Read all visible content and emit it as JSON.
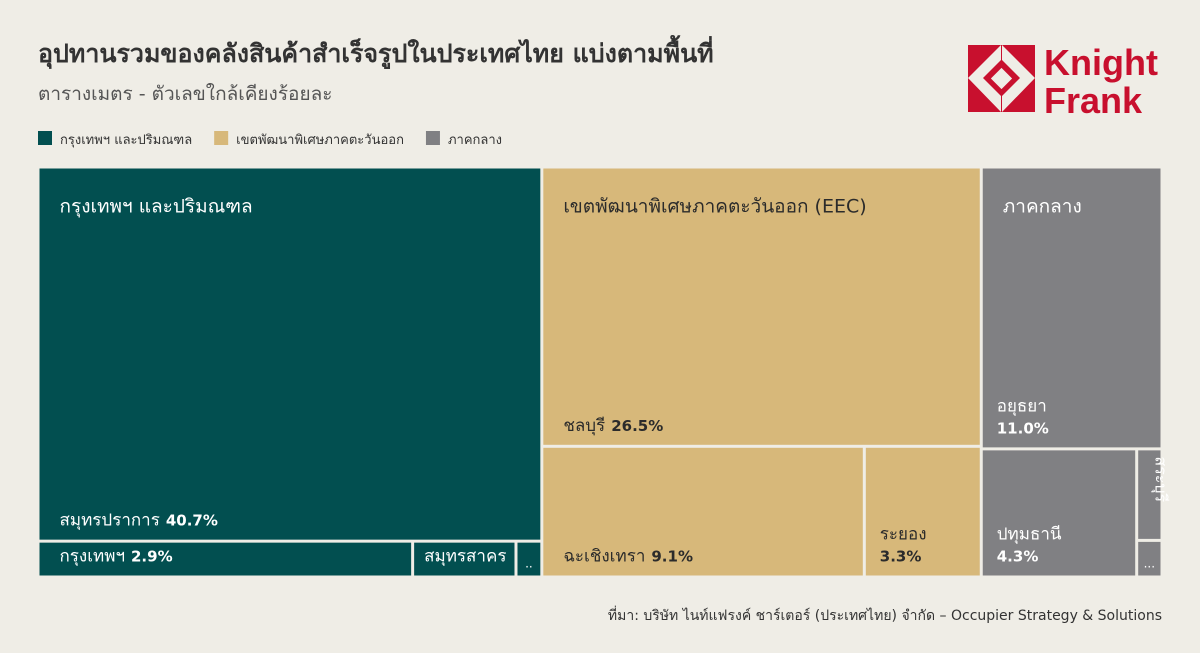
{
  "chart_data": {
    "type": "treemap",
    "title": "อุปทานรวมของคลังสินค้าสำเร็จรูปในประเทศไทย แบ่งตามพื้นที่",
    "subtitle": "ตารางเมตร - ตัวเลขใกล้เคียงร้อยละ",
    "source": "ที่มา: บริษัท ไนท์แฟรงค์ ชาร์เตอร์ (ประเทศไทย) จำกัด – Occupier Strategy & Solutions",
    "logo": [
      "Knight",
      "Frank"
    ],
    "legend": "top-left",
    "groups": [
      {
        "name": "กรุงเทพฯ และปริมณฑล",
        "label": "กรุงเทพฯ และปริมณฑล",
        "color": "#024f50",
        "text_color": "#ffffff",
        "children": [
          {
            "name": "สมุทรปราการ",
            "value": 40.7,
            "value_label": "40.7%"
          },
          {
            "name": "กรุงเทพฯ",
            "value": 2.9,
            "value_label": "2.9%"
          },
          {
            "name": "สมุทรสาคร",
            "value": 0.8,
            "value_label": null
          },
          {
            "name": "..",
            "value": 0.2,
            "value_label": null
          }
        ]
      },
      {
        "name": "เขตพัฒนาพิเศษภาคตะวันออก",
        "label": "เขตพัฒนาพิเศษภาคตะวันออก (EEC)",
        "color": "#d7b87a",
        "text_color": "#2b2b2b",
        "children": [
          {
            "name": "ชลบุรี",
            "value": 26.5,
            "value_label": "26.5%"
          },
          {
            "name": "ฉะเชิงเทรา",
            "value": 9.1,
            "value_label": "9.1%"
          },
          {
            "name": "ระยอง",
            "value": 3.3,
            "value_label": "3.3%"
          }
        ]
      },
      {
        "name": "ภาคกลาง",
        "label": "ภาคกลาง",
        "color": "#808083",
        "text_color": "#ffffff",
        "children": [
          {
            "name": "อยุธยา",
            "value": 11.0,
            "value_label": "11.0%"
          },
          {
            "name": "ปทุมธานี",
            "value": 4.3,
            "value_label": "4.3%"
          },
          {
            "name": "สระบุรี",
            "value": 0.5,
            "value_label": null
          },
          {
            "name": "...",
            "value": 0.2,
            "value_label": null
          }
        ]
      }
    ]
  }
}
